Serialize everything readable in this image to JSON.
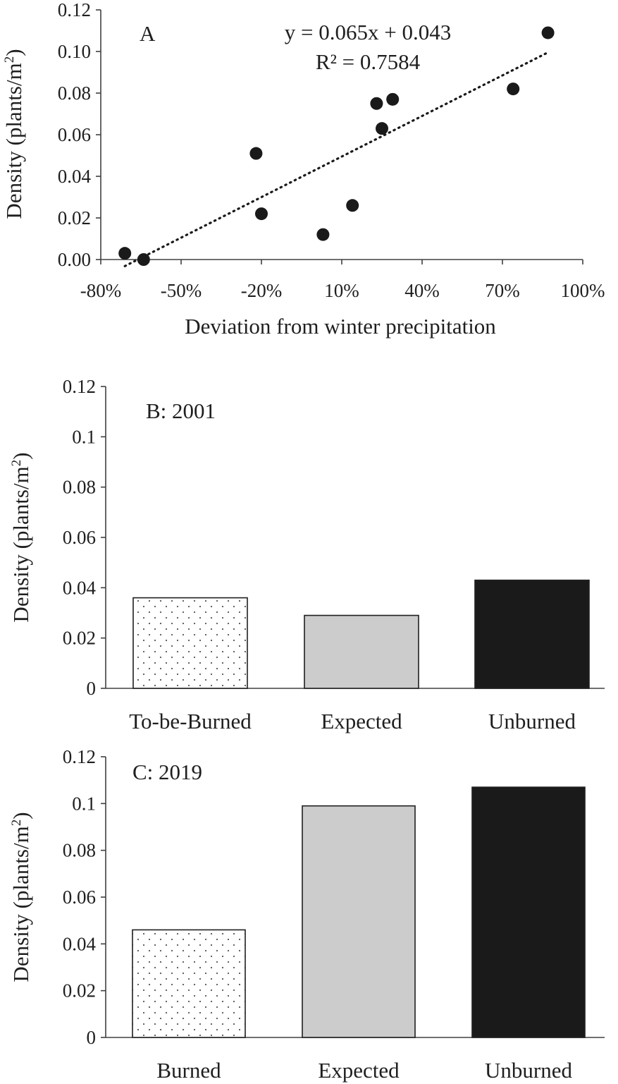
{
  "chart_data": [
    {
      "type": "scatter",
      "panel_label": "A",
      "equation": "y = 0.065x + 0.043",
      "r_squared": "R² = 0.7584",
      "xlabel": "Deviation from winter precipitation",
      "ylabel_main": "Density (plants/m",
      "ylabel_sup": "2",
      "ylabel_close": ")",
      "xlim": [
        -0.8,
        1.0
      ],
      "ylim": [
        0,
        0.12
      ],
      "x_ticks": [
        -0.8,
        -0.5,
        -0.2,
        0.1,
        0.4,
        0.7,
        1.0
      ],
      "x_tick_labels": [
        "-80%",
        "-50%",
        "-20%",
        "10%",
        "40%",
        "70%",
        "100%"
      ],
      "y_ticks": [
        0,
        0.02,
        0.04,
        0.06,
        0.08,
        0.1,
        0.12
      ],
      "y_tick_labels": [
        "0.00",
        "0.02",
        "0.04",
        "0.06",
        "0.08",
        "0.10",
        "0.12"
      ],
      "points": [
        {
          "x": -0.71,
          "y": 0.003
        },
        {
          "x": -0.64,
          "y": 0.0
        },
        {
          "x": -0.22,
          "y": 0.051
        },
        {
          "x": -0.2,
          "y": 0.022
        },
        {
          "x": 0.03,
          "y": 0.012
        },
        {
          "x": 0.14,
          "y": 0.026
        },
        {
          "x": 0.23,
          "y": 0.075
        },
        {
          "x": 0.25,
          "y": 0.063
        },
        {
          "x": 0.29,
          "y": 0.077
        },
        {
          "x": 0.74,
          "y": 0.082
        },
        {
          "x": 0.87,
          "y": 0.109
        }
      ],
      "trendline": {
        "slope": 0.065,
        "intercept": 0.043,
        "style": "dotted"
      },
      "grid": false,
      "marker_color": "#1a1a1a"
    },
    {
      "type": "bar",
      "panel_label": "B: 2001",
      "categories": [
        "To-be-Burned",
        "Expected",
        "Unburned"
      ],
      "values": [
        0.036,
        0.029,
        0.043
      ],
      "patterns": [
        "dotted",
        "gray",
        "black"
      ],
      "ylabel_main": "Density (plants/m",
      "ylabel_sup": "2",
      "ylabel_close": ")",
      "ylim": [
        0,
        0.12
      ],
      "y_ticks": [
        0,
        0.02,
        0.04,
        0.06,
        0.08,
        0.1,
        0.12
      ],
      "y_tick_labels": [
        "0",
        "0.02",
        "0.04",
        "0.06",
        "0.08",
        "0.1",
        "0.12"
      ],
      "grid": false
    },
    {
      "type": "bar",
      "panel_label": "C: 2019",
      "categories": [
        "Burned",
        "Expected",
        "Unburned"
      ],
      "values": [
        0.046,
        0.099,
        0.107
      ],
      "patterns": [
        "dotted",
        "gray",
        "black"
      ],
      "ylabel_main": "Density (plants/m",
      "ylabel_sup": "2",
      "ylabel_close": ")",
      "ylim": [
        0,
        0.12
      ],
      "y_ticks": [
        0,
        0.02,
        0.04,
        0.06,
        0.08,
        0.1,
        0.12
      ],
      "y_tick_labels": [
        "0",
        "0.02",
        "0.04",
        "0.06",
        "0.08",
        "0.1",
        "0.12"
      ],
      "grid": false
    }
  ],
  "colors": {
    "gray_fill": "#cccccc",
    "black_fill": "#1a1a1a",
    "dot_fill": "#555555",
    "outline": "#1f1f1f"
  }
}
